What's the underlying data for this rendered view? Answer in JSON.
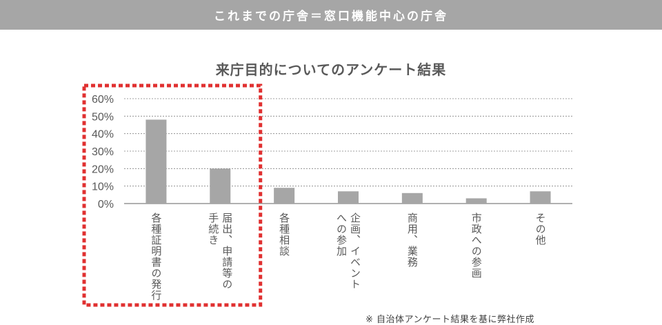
{
  "banner": {
    "title": "これまでの庁舎＝窓口機能中心の庁舎"
  },
  "source_note": "※ 自治体アンケート結果を基に弊社作成",
  "colors": {
    "bar": "#a6a6a6",
    "highlight": "#e03030",
    "banner": "#a6a6a6",
    "grid": "#808080",
    "text": "#595959"
  },
  "chart_data": {
    "type": "bar",
    "title": "来庁目的についてのアンケート結果",
    "xlabel": "",
    "ylabel": "",
    "ylim": [
      0,
      0.6
    ],
    "yticks": [
      0,
      0.1,
      0.2,
      0.3,
      0.4,
      0.5,
      0.6
    ],
    "ytick_labels": [
      "0%",
      "10%",
      "20%",
      "30%",
      "40%",
      "50%",
      "60%"
    ],
    "categories": [
      [
        "各種証明書の発行"
      ],
      [
        "届出、申請等の",
        "手続き"
      ],
      [
        "各種相談"
      ],
      [
        "企画、イベント",
        "への参加"
      ],
      [
        "商用、業務"
      ],
      [
        "市政への参画"
      ],
      [
        "その他"
      ]
    ],
    "values": [
      0.48,
      0.2,
      0.09,
      0.07,
      0.06,
      0.03,
      0.07
    ],
    "grid": true,
    "highlighted_categories": [
      0,
      1
    ]
  }
}
